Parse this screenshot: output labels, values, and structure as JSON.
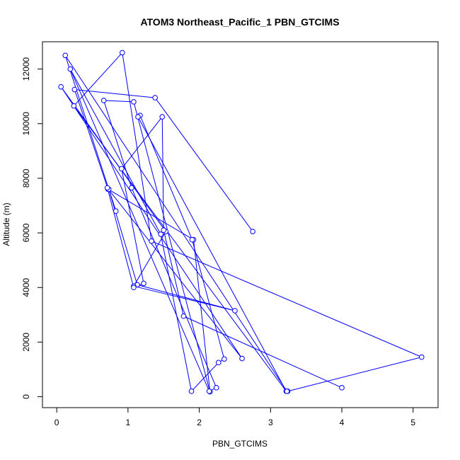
{
  "chart_data": {
    "type": "line",
    "title": "ATOM3 Northeast_Pacific_1 PBN_GTCIMS",
    "xlabel": "PBN_GTCIMS",
    "ylabel": "Altitude (m)",
    "xlim": [
      -0.2,
      5.35
    ],
    "ylim": [
      -400,
      13000
    ],
    "xticks": [
      0,
      1,
      2,
      3,
      4,
      5
    ],
    "yticks": [
      0,
      2000,
      4000,
      6000,
      8000,
      10000,
      12000
    ],
    "grid": false,
    "line_color": "#0000ff",
    "marker": "open-circle",
    "series": [
      {
        "x": [
          2.75,
          1.38,
          0.25,
          0.72,
          1.92,
          2.15,
          1.08,
          0.66,
          1.05,
          2.24,
          2.14,
          0.19,
          1.46,
          1.89,
          2.27,
          2.35,
          1.9,
          1.17,
          1.14,
          3.22,
          0.24,
          0.92,
          1.33,
          5.12,
          3.24,
          3.23,
          0.12,
          0.83,
          0.73,
          1.13,
          2.5,
          1.08,
          1.53,
          0.06,
          2.6,
          0.71,
          1.08,
          1.22,
          0.91,
          1.48,
          1.5,
          1.78,
          4.0
        ],
        "y": [
          6050,
          10950,
          11250,
          7600,
          5750,
          180,
          10800,
          10850,
          7650,
          330,
          200,
          12000,
          5950,
          200,
          1250,
          1380,
          5750,
          10300,
          10250,
          200,
          10650,
          12600,
          5700,
          1450,
          200,
          200,
          12500,
          6800,
          7600,
          4100,
          3150,
          4050,
          6050,
          11350,
          1400,
          7650,
          4000,
          4150,
          8350,
          10250,
          6100,
          2950,
          330
        ]
      }
    ]
  }
}
